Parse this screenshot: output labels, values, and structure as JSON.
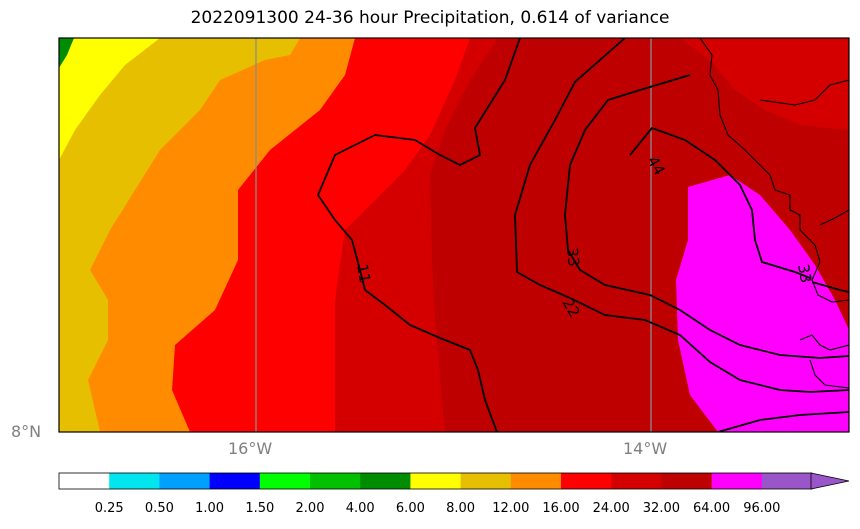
{
  "title": "2022091300 24-36 hour Precipitation, 0.614 of variance",
  "map": {
    "region": "East Atlantic, south of 8°N edge",
    "lon_labels": [
      "16°W",
      "14°W"
    ],
    "lat_labels": [
      "8°N"
    ],
    "contour_labels": [
      "11",
      "22",
      "33",
      "44",
      "33"
    ],
    "contour_color": "#000000",
    "gridline_color": "#8c8c8c"
  },
  "colorbar": {
    "tick_labels": [
      "0.25",
      "0.50",
      "1.00",
      "1.50",
      "2.00",
      "4.00",
      "6.00",
      "8.00",
      "12.00",
      "16.00",
      "24.00",
      "32.00",
      "64.00",
      "96.00"
    ],
    "colors": [
      "#ffffff",
      "#00e5ee",
      "#00a0ff",
      "#0000ff",
      "#00ff00",
      "#00c000",
      "#008c00",
      "#ffff00",
      "#e6c000",
      "#ff8c00",
      "#ff0000",
      "#d40000",
      "#bf0000",
      "#ff00ff",
      "#9a55c8"
    ],
    "extend": "max"
  },
  "fill_colors": {
    "green": "#008c00",
    "yellow": "#ffff00",
    "gold": "#e6c000",
    "orange": "#ff8c00",
    "red": "#ff0000",
    "red2": "#d40000",
    "darkred": "#bf0000",
    "magenta": "#ff00ff"
  }
}
